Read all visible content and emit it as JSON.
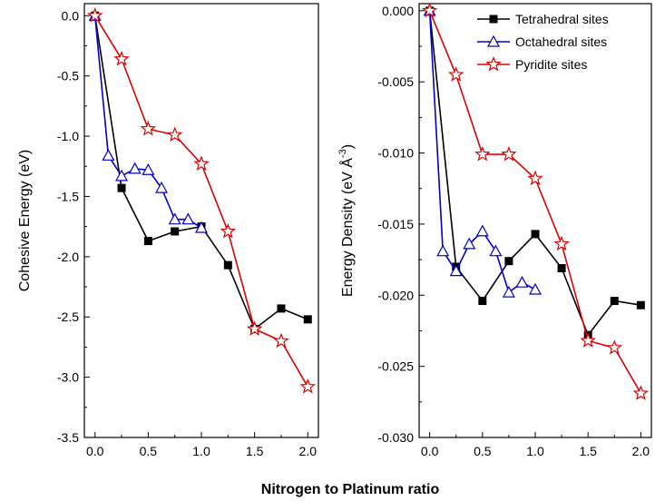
{
  "figure": {
    "shared_xlabel": "Nitrogen to Platinum ratio"
  },
  "chart_data": [
    {
      "type": "line",
      "ylabel": "Cohesive Energy (eV)",
      "xlim": [
        -0.1,
        2.1
      ],
      "ylim": [
        -3.5,
        0.1
      ],
      "xticks": [
        "0.0",
        "0.5",
        "1.0",
        "1.5",
        "2.0"
      ],
      "xtick_values": [
        0,
        0.5,
        1,
        1.5,
        2
      ],
      "yticks": [
        "0.0",
        "-0.5",
        "-1.0",
        "-1.5",
        "-2.0",
        "-2.5",
        "-3.0",
        "-3.5"
      ],
      "ytick_values": [
        0,
        -0.5,
        -1,
        -1.5,
        -2,
        -2.5,
        -3,
        -3.5
      ],
      "series": [
        {
          "name": "Tetrahedral sites",
          "color": "#000000",
          "marker": "square-filled",
          "x": [
            0,
            0.25,
            0.5,
            0.75,
            1.0,
            1.25,
            1.5,
            1.75,
            2.0
          ],
          "y": [
            0,
            -1.43,
            -1.87,
            -1.79,
            -1.75,
            -2.07,
            -2.6,
            -2.43,
            -2.52
          ]
        },
        {
          "name": "Octahedral sites",
          "color": "#0000cc",
          "marker": "triangle-open",
          "x": [
            0,
            0.125,
            0.25,
            0.375,
            0.5,
            0.625,
            0.75,
            0.875,
            1.0
          ],
          "y": [
            0,
            -1.16,
            -1.33,
            -1.27,
            -1.28,
            -1.43,
            -1.69,
            -1.69,
            -1.76
          ]
        },
        {
          "name": "Pyridite sites",
          "color": "#dd0000",
          "marker": "star-open",
          "x": [
            0,
            0.25,
            0.5,
            0.75,
            1.0,
            1.25,
            1.5,
            1.75,
            2.0
          ],
          "y": [
            0,
            -0.36,
            -0.94,
            -0.99,
            -1.23,
            -1.79,
            -2.6,
            -2.7,
            -3.08
          ]
        }
      ]
    },
    {
      "type": "line",
      "ylabel": "Energy Density (eV Å",
      "ylabel_sup": "-3",
      "ylabel_close": ")",
      "xlim": [
        -0.1,
        2.1
      ],
      "ylim": [
        -0.03,
        0.0005
      ],
      "xticks": [
        "0.0",
        "0.5",
        "1.0",
        "1.5",
        "2.0"
      ],
      "xtick_values": [
        0,
        0.5,
        1,
        1.5,
        2
      ],
      "yticks": [
        "0.000",
        "-0.005",
        "-0.010",
        "-0.015",
        "-0.020",
        "-0.025",
        "-0.030"
      ],
      "ytick_values": [
        0,
        -0.005,
        -0.01,
        -0.015,
        -0.02,
        -0.025,
        -0.03
      ],
      "legend": {
        "position": "top-right"
      },
      "series": [
        {
          "name": "Tetrahedral sites",
          "color": "#000000",
          "marker": "square-filled",
          "x": [
            0,
            0.25,
            0.5,
            0.75,
            1.0,
            1.25,
            1.5,
            1.75,
            2.0
          ],
          "y": [
            0,
            -0.018,
            -0.0204,
            -0.0176,
            -0.0157,
            -0.0181,
            -0.0228,
            -0.0204,
            -0.0207
          ]
        },
        {
          "name": "Octahedral sites",
          "color": "#0000cc",
          "marker": "triangle-open",
          "x": [
            0,
            0.125,
            0.25,
            0.375,
            0.5,
            0.625,
            0.75,
            0.875,
            1.0
          ],
          "y": [
            0,
            -0.0169,
            -0.0183,
            -0.0164,
            -0.0155,
            -0.0169,
            -0.0198,
            -0.0191,
            -0.0196
          ]
        },
        {
          "name": "Pyridite sites",
          "color": "#dd0000",
          "marker": "star-open",
          "x": [
            0,
            0.25,
            0.5,
            0.75,
            1.0,
            1.25,
            1.5,
            1.75,
            2.0
          ],
          "y": [
            0,
            -0.0045,
            -0.0101,
            -0.0101,
            -0.0118,
            -0.0164,
            -0.0232,
            -0.0237,
            -0.0269
          ]
        }
      ]
    }
  ]
}
